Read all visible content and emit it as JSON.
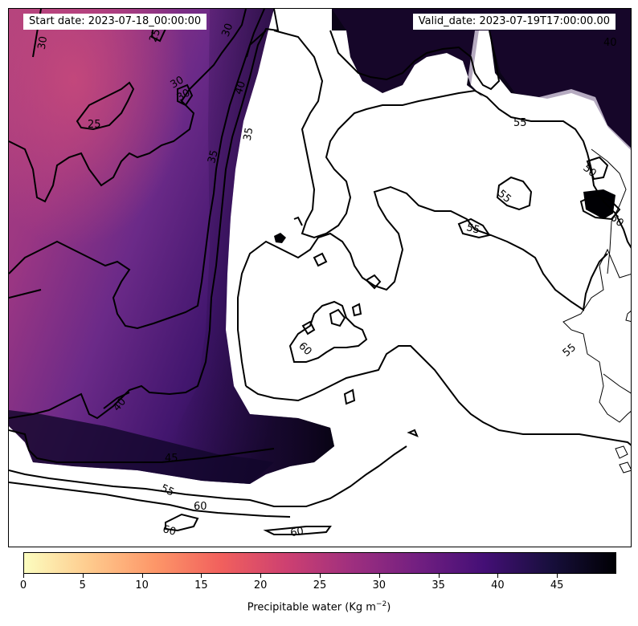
{
  "header": {
    "start_date": "Start date: 2023-07-18_00:00:00",
    "valid_date": "Valid_date: 2023-07-19T17:00:00.00"
  },
  "colorbar": {
    "label_main": "Precipitable water (Kg m",
    "label_exp": "−2",
    "label_end": ")",
    "min": 0,
    "max": 50,
    "ticks": [
      "0",
      "5",
      "10",
      "15",
      "20",
      "25",
      "30",
      "35",
      "40",
      "45"
    ],
    "colors": [
      "#fcfdbf",
      "#feca8d",
      "#fd9668",
      "#f1605d",
      "#cd4071",
      "#9e2f7f",
      "#721f81",
      "#440f76",
      "#180f3d",
      "#000004"
    ]
  },
  "contour_labels": [
    "25",
    "25",
    "30",
    "30",
    "30",
    "30",
    "35",
    "35",
    "40",
    "40",
    "40",
    "45",
    "50",
    "50",
    "55",
    "55",
    "55",
    "55",
    "55",
    "60",
    "60",
    "60",
    "60"
  ],
  "colors": {
    "land_outline": "#000000",
    "contour_line": "#000000",
    "background": "#ffffff"
  }
}
